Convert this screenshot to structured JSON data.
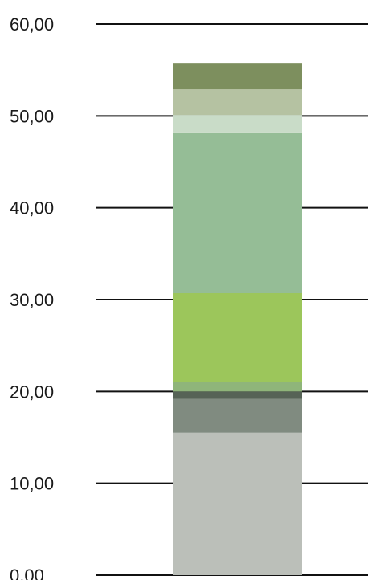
{
  "chart_data": {
    "type": "bar",
    "stacked": true,
    "categories": [
      ""
    ],
    "title": "",
    "xlabel": "",
    "ylabel": "",
    "ylim": [
      0,
      60
    ],
    "yticks": [
      0,
      10,
      20,
      30,
      40,
      50,
      60
    ],
    "ytick_labels": [
      "0,00",
      "10,00",
      "20,00",
      "30,00",
      "40,00",
      "50,00",
      "60,00"
    ],
    "grid": true,
    "legend": "none",
    "series": [
      {
        "values": [
          15.5
        ],
        "color": "#bbbfb9"
      },
      {
        "values": [
          3.7
        ],
        "color": "#808b80"
      },
      {
        "values": [
          0.8
        ],
        "color": "#566356"
      },
      {
        "values": [
          1.0
        ],
        "color": "#8fb57a"
      },
      {
        "values": [
          9.7
        ],
        "color": "#9cc65b"
      },
      {
        "values": [
          17.5
        ],
        "color": "#95bd96"
      },
      {
        "values": [
          1.9
        ],
        "color": "#c9dcc8"
      },
      {
        "values": [
          2.8
        ],
        "color": "#b5c2a2"
      },
      {
        "values": [
          2.8
        ],
        "color": "#7d8f5e"
      }
    ]
  }
}
